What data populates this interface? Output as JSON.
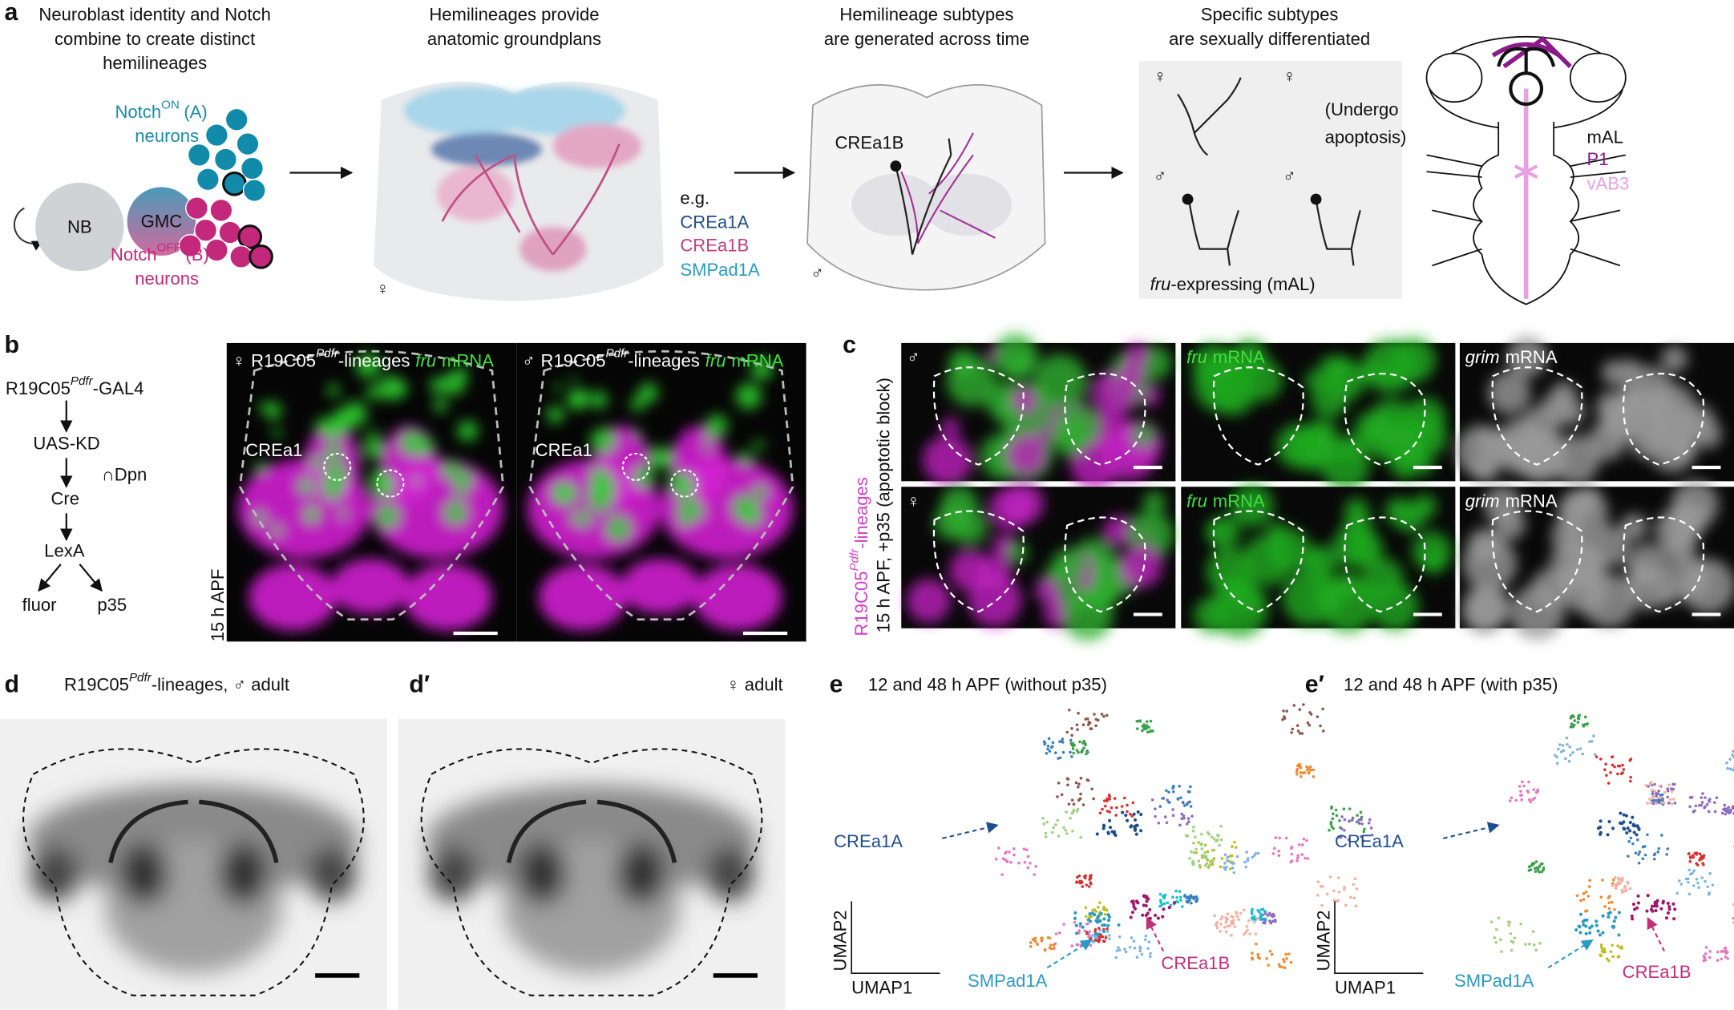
{
  "panel_a": {
    "label": "a",
    "step1": [
      "Neuroblast identity and Notch",
      "combine to create distinct",
      "hemilineages"
    ],
    "step2": [
      "Hemilineages provide",
      "anatomic groundplans"
    ],
    "step3": [
      "Hemilineage subtypes",
      "are generated across time"
    ],
    "step4": [
      "Specific subtypes",
      "are sexually differentiated"
    ],
    "nb": "NB",
    "gmc": "GMC",
    "notch_on": {
      "name": "Notch",
      "state": "ON",
      "branch": "(A)",
      "cells": "neurons"
    },
    "notch_off": {
      "name": "Notch",
      "state": "OFF",
      "branch": "(B)",
      "cells": "neurons"
    },
    "female": "♀",
    "male": "♂",
    "example": "e.g.",
    "hemilineages": [
      "CREa1A",
      "CREa1B",
      "SMPad1A"
    ],
    "subtype": "CREa1B",
    "apoptosis": [
      "(Undergo",
      "apoptosis)"
    ],
    "fru_note": {
      "gene": "fru",
      "rest": "-expressing (mAL)"
    },
    "legend": [
      "mAL",
      "P1",
      "vAB3"
    ]
  },
  "panel_b": {
    "label": "b",
    "driver": {
      "name": "R19C05",
      "sup": "Pdfr",
      "rest": "-GAL4"
    },
    "steps": [
      "UAS-KD",
      "∩Dpn",
      "Cre",
      "LexA",
      "fluor",
      "p35"
    ],
    "sexes": [
      "♀",
      "♂"
    ],
    "image_header": {
      "name": "R19C05",
      "sup": "Pdfr",
      "rest": "-lineages",
      "gene": "fru",
      "probe": "mRNA"
    },
    "region": "CREa1",
    "stage": "15 h APF"
  },
  "panel_c": {
    "label": "c",
    "lineage": {
      "name": "R19C05",
      "sup": "Pdfr",
      "rest": "-lineages"
    },
    "condition": "15 h APF, +p35 (apoptotic block)",
    "sexes": [
      "♂",
      "♀"
    ],
    "fru": {
      "gene": "fru",
      "probe": "mRNA"
    },
    "grim": {
      "gene": "grim",
      "probe": "mRNA"
    }
  },
  "panel_d": {
    "label": "d",
    "title": {
      "name": "R19C05",
      "sup": "Pdfr",
      "rest": "-lineages, ♂ adult"
    }
  },
  "panel_d_prime": {
    "label": "d′",
    "title": "♀ adult"
  },
  "panel_e": {
    "label": "e",
    "title": "12 and 48 h APF (without p35)",
    "clusters": [
      "CREa1A",
      "SMPad1A",
      "CREa1B"
    ],
    "x_axis": "UMAP1",
    "y_axis": "UMAP2"
  },
  "panel_e_prime": {
    "label": "e′",
    "title": "12 and 48 h APF (with p35)",
    "clusters": [
      "CREa1A",
      "SMPad1A",
      "CREa1B"
    ],
    "x_axis": "UMAP1",
    "y_axis": "UMAP2"
  }
}
